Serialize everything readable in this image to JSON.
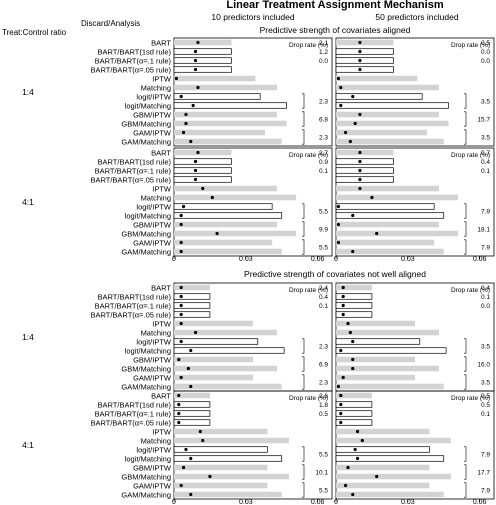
{
  "title": "Linear Treatment Assignment Mechanism",
  "col_headers": [
    "10 predictors included",
    "50 predictors included"
  ],
  "row_label_header": "Treat:Control ratio",
  "method_header": "Discard/Analysis",
  "drop_rate_label": "Drop rate (%)",
  "methods": [
    "BART",
    "BART/BART(1sd rule)",
    "BART/BART(α=.1 rule)",
    "BART/BART(α=.05 rule)",
    "IPTW",
    "Matching",
    "logit/IPTW",
    "logit/Matching",
    "GBM/IPTW",
    "GBM/Matching",
    "GAM/IPTW",
    "GAM/Matching"
  ],
  "bar_types": [
    "gray",
    "white",
    "white",
    "white",
    "gray",
    "gray",
    "white",
    "white",
    "gray",
    "gray",
    "gray",
    "gray"
  ],
  "colors": {
    "gray_bar": "#d3d3d3",
    "white_bar": "#ffffff",
    "outline": "#000000"
  },
  "x_ticks": [
    "0",
    "0.03",
    "0.06"
  ],
  "chart_data": {
    "type": "bar",
    "xlim": [
      0,
      0.066
    ],
    "sections": [
      {
        "title": "Predictive strength of covariates aligned",
        "blocks": [
          {
            "ratio": "1:4",
            "panels": [
              {
                "bar": [
                  0.024,
                  0.024,
                  0.024,
                  0.024,
                  0.034,
                  0.043,
                  0.036,
                  0.047,
                  0.043,
                  0.047,
                  0.038,
                  0.045
                ],
                "point": [
                  0.01,
                  0.009,
                  0.009,
                  0.009,
                  0.001,
                  0.01,
                  0.003,
                  0.008,
                  0.005,
                  0.005,
                  0.004,
                  0.007
                ],
                "drop_rates": [
                  "2.1",
                  "1.2",
                  "0.0",
                  "",
                  "",
                  "",
                  "2.3",
                  "",
                  "6.8",
                  "",
                  "2.3",
                  ""
                ]
              },
              {
                "bar": [
                  0.024,
                  0.024,
                  0.024,
                  0.024,
                  0.034,
                  0.043,
                  0.036,
                  0.047,
                  0.043,
                  0.047,
                  0.038,
                  0.045
                ],
                "point": [
                  0.01,
                  0.01,
                  0.01,
                  0.01,
                  0.001,
                  0.002,
                  0.007,
                  0.002,
                  0.01,
                  0.008,
                  0.004,
                  0.006
                ],
                "drop_rates": [
                  "0.5",
                  "0.0",
                  "0.0",
                  "",
                  "",
                  "",
                  "3.5",
                  "",
                  "15.7",
                  "",
                  "3.5",
                  ""
                ]
              }
            ]
          },
          {
            "ratio": "4:1",
            "panels": [
              {
                "bar": [
                  0.024,
                  0.024,
                  0.024,
                  0.024,
                  0.043,
                  0.051,
                  0.041,
                  0.045,
                  0.043,
                  0.051,
                  0.041,
                  0.045
                ],
                "point": [
                  0.01,
                  0.009,
                  0.009,
                  0.009,
                  0.012,
                  0.016,
                  0.004,
                  0.003,
                  0.003,
                  0.018,
                  0.003,
                  0.003
                ],
                "drop_rates": [
                  "2.7",
                  "0.9",
                  "0.1",
                  "",
                  "",
                  "",
                  "5.5",
                  "",
                  "9.9",
                  "",
                  "5.5",
                  ""
                ]
              },
              {
                "bar": [
                  0.024,
                  0.024,
                  0.024,
                  0.024,
                  0.043,
                  0.051,
                  0.041,
                  0.045,
                  0.043,
                  0.051,
                  0.041,
                  0.045
                ],
                "point": [
                  0.01,
                  0.01,
                  0.01,
                  0.01,
                  0.01,
                  0.015,
                  0.001,
                  0.007,
                  0.001,
                  0.017,
                  0.001,
                  0.007
                ],
                "drop_rates": [
                  "0.7",
                  "0.4",
                  "0.1",
                  "",
                  "",
                  "",
                  "7.9",
                  "",
                  "18.1",
                  "",
                  "7.9",
                  ""
                ]
              }
            ]
          }
        ]
      },
      {
        "title": "Predictive strength of covariates not well aligned",
        "blocks": [
          {
            "ratio": "1:4",
            "panels": [
              {
                "bar": [
                  0.015,
                  0.015,
                  0.015,
                  0.015,
                  0.033,
                  0.043,
                  0.035,
                  0.046,
                  0.033,
                  0.043,
                  0.033,
                  0.045
                ],
                "point": [
                  0.003,
                  0.003,
                  0.003,
                  0.003,
                  0.003,
                  0.009,
                  0.003,
                  0.007,
                  0.002,
                  0.006,
                  0.003,
                  0.007
                ],
                "drop_rates": [
                  "2.4",
                  "0.4",
                  "0.1",
                  "",
                  "",
                  "",
                  "2.3",
                  "",
                  "6.9",
                  "",
                  "2.3",
                  ""
                ]
              },
              {
                "bar": [
                  0.015,
                  0.015,
                  0.015,
                  0.015,
                  0.033,
                  0.043,
                  0.035,
                  0.046,
                  0.033,
                  0.043,
                  0.033,
                  0.045
                ],
                "point": [
                  0.003,
                  0.003,
                  0.003,
                  0.003,
                  0.005,
                  0.006,
                  0.007,
                  0.002,
                  0.007,
                  0.007,
                  0.003,
                  0.001
                ],
                "drop_rates": [
                  "0.4",
                  "0.1",
                  "0.0",
                  "",
                  "",
                  "",
                  "3.5",
                  "",
                  "16.0",
                  "",
                  "3.5",
                  ""
                ]
              }
            ]
          },
          {
            "ratio": "4:1",
            "panels": [
              {
                "bar": [
                  0.015,
                  0.015,
                  0.015,
                  0.015,
                  0.039,
                  0.048,
                  0.039,
                  0.045,
                  0.039,
                  0.048,
                  0.039,
                  0.045
                ],
                "point": [
                  0.002,
                  0.002,
                  0.002,
                  0.002,
                  0.011,
                  0.012,
                  0.005,
                  0.007,
                  0.004,
                  0.015,
                  0.003,
                  0.007
                ],
                "drop_rates": [
                  "2.6",
                  "1.8",
                  "0.5",
                  "",
                  "",
                  "",
                  "5.5",
                  "",
                  "10.1",
                  "",
                  "5.5",
                  ""
                ]
              },
              {
                "bar": [
                  0.015,
                  0.015,
                  0.015,
                  0.015,
                  0.039,
                  0.048,
                  0.039,
                  0.045,
                  0.039,
                  0.048,
                  0.039,
                  0.045
                ],
                "point": [
                  0.002,
                  0.002,
                  0.002,
                  0.002,
                  0.009,
                  0.011,
                  0.008,
                  0.009,
                  0.005,
                  0.017,
                  0.004,
                  0.007
                ],
                "drop_rates": [
                  "0.5",
                  "0.5",
                  "0.1",
                  "",
                  "",
                  "",
                  "7.9",
                  "",
                  "17.7",
                  "",
                  "7.9",
                  ""
                ]
              }
            ]
          }
        ]
      }
    ]
  }
}
